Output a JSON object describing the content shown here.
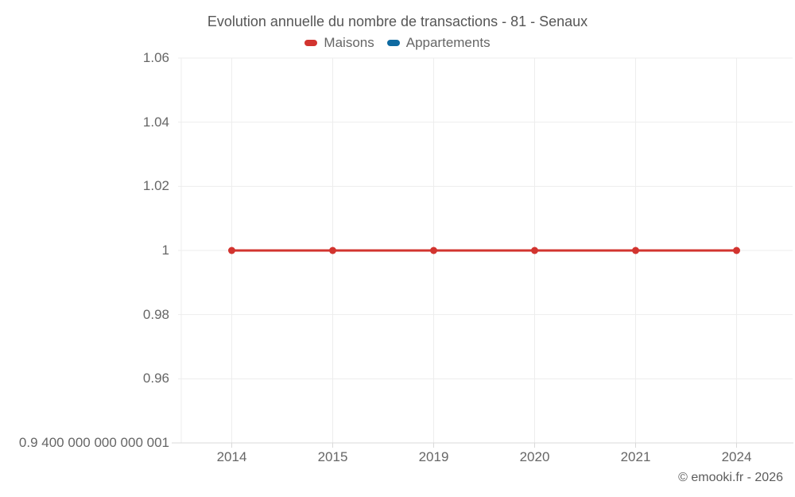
{
  "title": "Evolution annuelle du nombre de transactions - 81 - Senaux",
  "legend": {
    "items": [
      {
        "label": "Maisons",
        "color": "#d2342f"
      },
      {
        "label": "Appartements",
        "color": "#0e6aa1"
      }
    ]
  },
  "footer": {
    "copyright": "© emooki.fr - 2026"
  },
  "colors": {
    "maisons": "#d2342f",
    "appartements": "#0e6aa1",
    "gridline": "#ededed",
    "axis_line": "#d9d9d9",
    "title_text": "#565656",
    "tick_text": "#666666"
  },
  "chart_data": {
    "type": "line",
    "title": "Evolution annuelle du nombre de transactions - 81 - Senaux",
    "categories": [
      "2014",
      "2015",
      "2019",
      "2020",
      "2021",
      "2024"
    ],
    "series": [
      {
        "name": "Maisons",
        "color": "#d2342f",
        "values": [
          1,
          1,
          1,
          1,
          1,
          1
        ]
      },
      {
        "name": "Appartements",
        "color": "#0e6aa1",
        "values": []
      }
    ],
    "y_ticks": [
      {
        "value": 1.06,
        "label": "1.06"
      },
      {
        "value": 1.04,
        "label": "1.04"
      },
      {
        "value": 1.02,
        "label": "1.02"
      },
      {
        "value": 1,
        "label": "1"
      },
      {
        "value": 0.98,
        "label": "0.98"
      },
      {
        "value": 0.96,
        "label": "0.96"
      },
      {
        "value": 0.9400000000000001,
        "label": "0.9 400 000 000 000 001"
      }
    ],
    "ylim": [
      0.94,
      1.06
    ],
    "xlabel": "",
    "ylabel": "",
    "grid": true,
    "legend_position": "top"
  }
}
